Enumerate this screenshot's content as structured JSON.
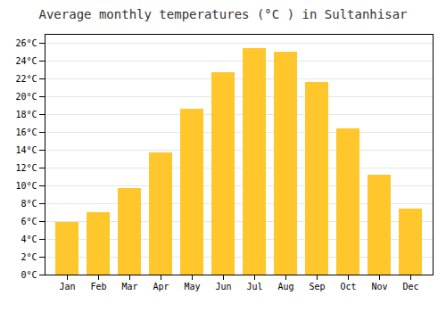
{
  "chart_data": {
    "type": "bar",
    "title": "Average monthly temperatures (°C ) in Sultanhisar",
    "categories": [
      "Jan",
      "Feb",
      "Mar",
      "Apr",
      "May",
      "Jun",
      "Jul",
      "Aug",
      "Sep",
      "Oct",
      "Nov",
      "Dec"
    ],
    "values": [
      5.9,
      7.0,
      9.7,
      13.7,
      18.6,
      22.7,
      25.4,
      25.0,
      21.6,
      16.4,
      11.2,
      7.4
    ],
    "color": "#FFC72C",
    "ylim": [
      0,
      27
    ],
    "yticks": [
      {
        "value": 0,
        "label": "0°C"
      },
      {
        "value": 2,
        "label": "2°C"
      },
      {
        "value": 4,
        "label": "4°C"
      },
      {
        "value": 6,
        "label": "6°C"
      },
      {
        "value": 8,
        "label": "8°C"
      },
      {
        "value": 10,
        "label": "10°C"
      },
      {
        "value": 12,
        "label": "12°C"
      },
      {
        "value": 14,
        "label": "14°C"
      },
      {
        "value": 16,
        "label": "16°C"
      },
      {
        "value": 18,
        "label": "18°C"
      },
      {
        "value": 20,
        "label": "20°C"
      },
      {
        "value": 22,
        "label": "22°C"
      },
      {
        "value": 24,
        "label": "24°C"
      },
      {
        "value": 26,
        "label": "26°C"
      }
    ],
    "grid": true
  }
}
